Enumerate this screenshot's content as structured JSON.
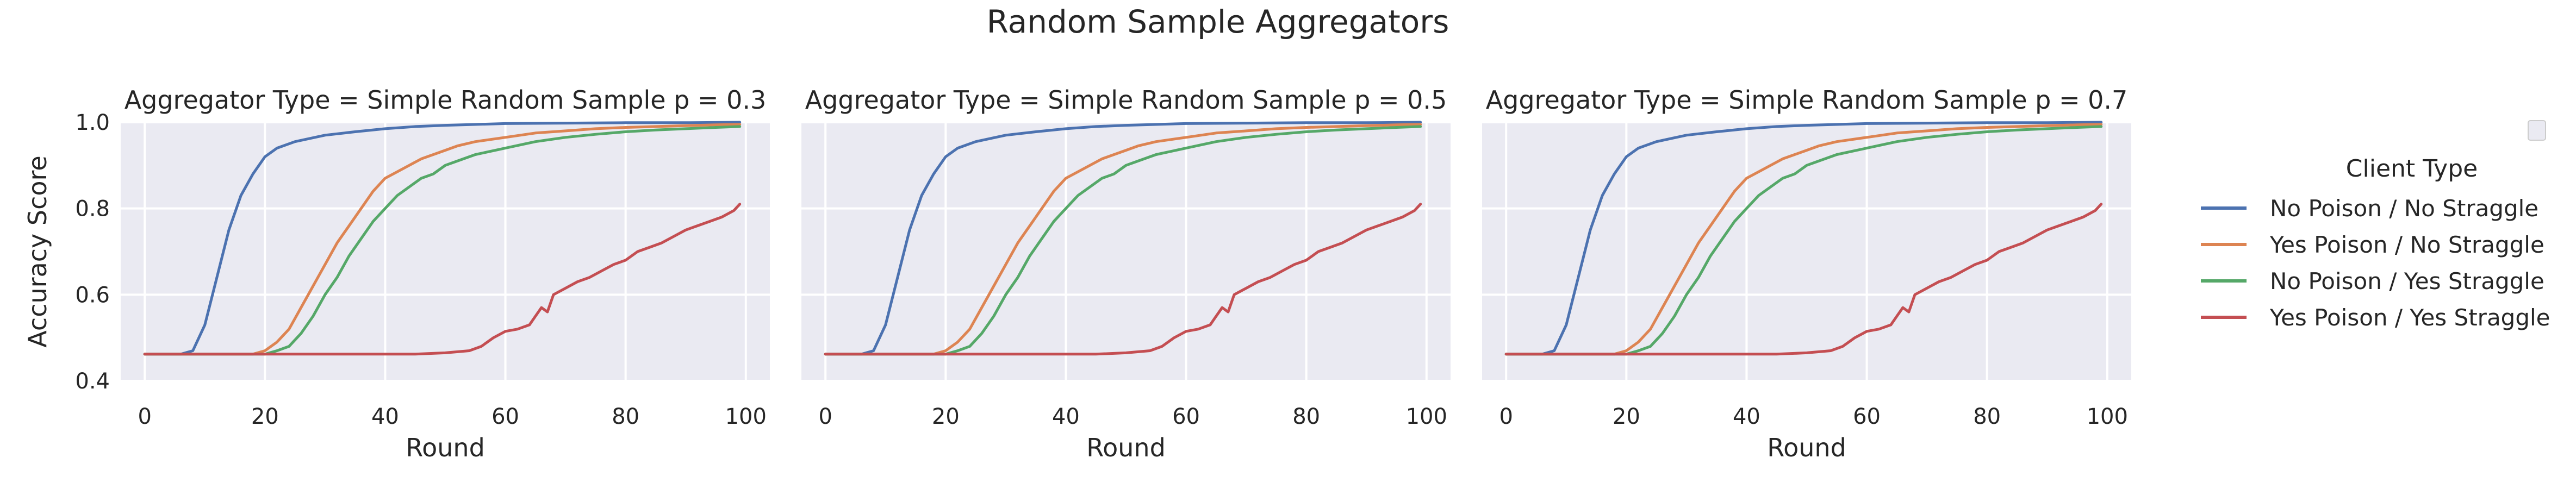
{
  "figure_title": "Random Sample Aggregators",
  "legend": {
    "title": "Client Type",
    "entries": [
      {
        "label": "No Poison / No Straggle",
        "color": "#4c72b0"
      },
      {
        "label": "Yes Poison / No Straggle",
        "color": "#dd8452"
      },
      {
        "label": "No Poison / Yes Straggle",
        "color": "#55a868"
      },
      {
        "label": "Yes Poison / Yes Straggle",
        "color": "#c44e52"
      }
    ]
  },
  "chart_data": [
    {
      "type": "line",
      "title": "Aggregator Type = Simple Random Sample p = 0.3",
      "xlabel": "Round",
      "ylabel": "Accuracy Score",
      "xlim": [
        -4,
        104
      ],
      "ylim": [
        0.4,
        1.0
      ],
      "xticks": [
        "0",
        "20",
        "40",
        "60",
        "80",
        "100"
      ],
      "yticks": [
        "0.4",
        "0.6",
        "0.8",
        "1.0"
      ],
      "grid": true,
      "series": [
        {
          "name": "No Poison / No Straggle",
          "color": "#4c72b0",
          "x": [
            0,
            6,
            8,
            10,
            12,
            14,
            16,
            18,
            20,
            22,
            25,
            30,
            35,
            40,
            45,
            50,
            55,
            60,
            70,
            80,
            90,
            99
          ],
          "y": [
            0.462,
            0.462,
            0.47,
            0.53,
            0.64,
            0.75,
            0.83,
            0.88,
            0.92,
            0.94,
            0.955,
            0.97,
            0.978,
            0.985,
            0.99,
            0.993,
            0.995,
            0.997,
            0.998,
            0.999,
            0.999,
            1.0
          ]
        },
        {
          "name": "Yes Poison / No Straggle",
          "color": "#dd8452",
          "x": [
            0,
            18,
            20,
            22,
            24,
            26,
            28,
            30,
            32,
            34,
            36,
            38,
            40,
            42,
            44,
            46,
            48,
            50,
            52,
            55,
            60,
            65,
            70,
            75,
            80,
            85,
            90,
            95,
            99
          ],
          "y": [
            0.462,
            0.462,
            0.47,
            0.49,
            0.52,
            0.57,
            0.62,
            0.67,
            0.72,
            0.76,
            0.8,
            0.84,
            0.87,
            0.885,
            0.9,
            0.915,
            0.925,
            0.935,
            0.945,
            0.955,
            0.965,
            0.975,
            0.98,
            0.985,
            0.988,
            0.99,
            0.992,
            0.994,
            0.995
          ]
        },
        {
          "name": "No Poison / Yes Straggle",
          "color": "#55a868",
          "x": [
            0,
            20,
            22,
            24,
            26,
            28,
            30,
            32,
            34,
            36,
            38,
            40,
            42,
            44,
            46,
            48,
            50,
            52,
            55,
            60,
            65,
            70,
            75,
            80,
            85,
            90,
            95,
            99
          ],
          "y": [
            0.462,
            0.462,
            0.47,
            0.48,
            0.51,
            0.55,
            0.6,
            0.64,
            0.69,
            0.73,
            0.77,
            0.8,
            0.83,
            0.85,
            0.87,
            0.88,
            0.9,
            0.91,
            0.925,
            0.94,
            0.955,
            0.965,
            0.972,
            0.978,
            0.982,
            0.985,
            0.988,
            0.99
          ]
        },
        {
          "name": "Yes Poison / Yes Straggle",
          "color": "#c44e52",
          "x": [
            0,
            45,
            50,
            54,
            56,
            58,
            60,
            62,
            64,
            65,
            66,
            67,
            68,
            70,
            72,
            74,
            76,
            78,
            80,
            82,
            84,
            86,
            88,
            90,
            92,
            94,
            96,
            98,
            99
          ],
          "y": [
            0.462,
            0.462,
            0.465,
            0.47,
            0.48,
            0.5,
            0.515,
            0.52,
            0.53,
            0.55,
            0.57,
            0.56,
            0.6,
            0.615,
            0.63,
            0.64,
            0.655,
            0.67,
            0.68,
            0.7,
            0.71,
            0.72,
            0.735,
            0.75,
            0.76,
            0.77,
            0.78,
            0.795,
            0.81
          ]
        }
      ]
    },
    {
      "type": "line",
      "title": "Aggregator Type = Simple Random Sample p = 0.5",
      "xlabel": "Round",
      "ylabel": "",
      "xlim": [
        -4,
        104
      ],
      "ylim": [
        0.4,
        1.0
      ],
      "xticks": [
        "0",
        "20",
        "40",
        "60",
        "80",
        "100"
      ],
      "yticks": [],
      "grid": true,
      "series": [
        {
          "name": "No Poison / No Straggle",
          "color": "#4c72b0",
          "x": [
            0,
            6,
            8,
            10,
            12,
            14,
            16,
            18,
            20,
            22,
            25,
            30,
            35,
            40,
            45,
            50,
            55,
            60,
            70,
            80,
            90,
            99
          ],
          "y": [
            0.462,
            0.462,
            0.47,
            0.53,
            0.64,
            0.75,
            0.83,
            0.88,
            0.92,
            0.94,
            0.955,
            0.97,
            0.978,
            0.985,
            0.99,
            0.993,
            0.995,
            0.997,
            0.998,
            0.999,
            0.999,
            1.0
          ]
        },
        {
          "name": "Yes Poison / No Straggle",
          "color": "#dd8452",
          "x": [
            0,
            18,
            20,
            22,
            24,
            26,
            28,
            30,
            32,
            34,
            36,
            38,
            40,
            42,
            44,
            46,
            48,
            50,
            52,
            55,
            60,
            65,
            70,
            75,
            80,
            85,
            90,
            95,
            99
          ],
          "y": [
            0.462,
            0.462,
            0.47,
            0.49,
            0.52,
            0.57,
            0.62,
            0.67,
            0.72,
            0.76,
            0.8,
            0.84,
            0.87,
            0.885,
            0.9,
            0.915,
            0.925,
            0.935,
            0.945,
            0.955,
            0.965,
            0.975,
            0.98,
            0.985,
            0.988,
            0.99,
            0.992,
            0.994,
            0.995
          ]
        },
        {
          "name": "No Poison / Yes Straggle",
          "color": "#55a868",
          "x": [
            0,
            20,
            22,
            24,
            26,
            28,
            30,
            32,
            34,
            36,
            38,
            40,
            42,
            44,
            46,
            48,
            50,
            52,
            55,
            60,
            65,
            70,
            75,
            80,
            85,
            90,
            95,
            99
          ],
          "y": [
            0.462,
            0.462,
            0.47,
            0.48,
            0.51,
            0.55,
            0.6,
            0.64,
            0.69,
            0.73,
            0.77,
            0.8,
            0.83,
            0.85,
            0.87,
            0.88,
            0.9,
            0.91,
            0.925,
            0.94,
            0.955,
            0.965,
            0.972,
            0.978,
            0.982,
            0.985,
            0.988,
            0.99
          ]
        },
        {
          "name": "Yes Poison / Yes Straggle",
          "color": "#c44e52",
          "x": [
            0,
            45,
            50,
            54,
            56,
            58,
            60,
            62,
            64,
            65,
            66,
            67,
            68,
            70,
            72,
            74,
            76,
            78,
            80,
            82,
            84,
            86,
            88,
            90,
            92,
            94,
            96,
            98,
            99
          ],
          "y": [
            0.462,
            0.462,
            0.465,
            0.47,
            0.48,
            0.5,
            0.515,
            0.52,
            0.53,
            0.55,
            0.57,
            0.56,
            0.6,
            0.615,
            0.63,
            0.64,
            0.655,
            0.67,
            0.68,
            0.7,
            0.71,
            0.72,
            0.735,
            0.75,
            0.76,
            0.77,
            0.78,
            0.795,
            0.81
          ]
        }
      ]
    },
    {
      "type": "line",
      "title": "Aggregator Type = Simple Random Sample p = 0.7",
      "xlabel": "Round",
      "ylabel": "",
      "xlim": [
        -4,
        104
      ],
      "ylim": [
        0.4,
        1.0
      ],
      "xticks": [
        "0",
        "20",
        "40",
        "60",
        "80",
        "100"
      ],
      "yticks": [],
      "grid": true,
      "series": [
        {
          "name": "No Poison / No Straggle",
          "color": "#4c72b0",
          "x": [
            0,
            6,
            8,
            10,
            12,
            14,
            16,
            18,
            20,
            22,
            25,
            30,
            35,
            40,
            45,
            50,
            55,
            60,
            70,
            80,
            90,
            99
          ],
          "y": [
            0.462,
            0.462,
            0.47,
            0.53,
            0.64,
            0.75,
            0.83,
            0.88,
            0.92,
            0.94,
            0.955,
            0.97,
            0.978,
            0.985,
            0.99,
            0.993,
            0.995,
            0.997,
            0.998,
            0.999,
            0.999,
            1.0
          ]
        },
        {
          "name": "Yes Poison / No Straggle",
          "color": "#dd8452",
          "x": [
            0,
            18,
            20,
            22,
            24,
            26,
            28,
            30,
            32,
            34,
            36,
            38,
            40,
            42,
            44,
            46,
            48,
            50,
            52,
            55,
            60,
            65,
            70,
            75,
            80,
            85,
            90,
            95,
            99
          ],
          "y": [
            0.462,
            0.462,
            0.47,
            0.49,
            0.52,
            0.57,
            0.62,
            0.67,
            0.72,
            0.76,
            0.8,
            0.84,
            0.87,
            0.885,
            0.9,
            0.915,
            0.925,
            0.935,
            0.945,
            0.955,
            0.965,
            0.975,
            0.98,
            0.985,
            0.988,
            0.99,
            0.992,
            0.994,
            0.995
          ]
        },
        {
          "name": "No Poison / Yes Straggle",
          "color": "#55a868",
          "x": [
            0,
            20,
            22,
            24,
            26,
            28,
            30,
            32,
            34,
            36,
            38,
            40,
            42,
            44,
            46,
            48,
            50,
            52,
            55,
            60,
            65,
            70,
            75,
            80,
            85,
            90,
            95,
            99
          ],
          "y": [
            0.462,
            0.462,
            0.47,
            0.48,
            0.51,
            0.55,
            0.6,
            0.64,
            0.69,
            0.73,
            0.77,
            0.8,
            0.83,
            0.85,
            0.87,
            0.88,
            0.9,
            0.91,
            0.925,
            0.94,
            0.955,
            0.965,
            0.972,
            0.978,
            0.982,
            0.985,
            0.988,
            0.99
          ]
        },
        {
          "name": "Yes Poison / Yes Straggle",
          "color": "#c44e52",
          "x": [
            0,
            45,
            50,
            54,
            56,
            58,
            60,
            62,
            64,
            65,
            66,
            67,
            68,
            70,
            72,
            74,
            76,
            78,
            80,
            82,
            84,
            86,
            88,
            90,
            92,
            94,
            96,
            98,
            99
          ],
          "y": [
            0.462,
            0.462,
            0.465,
            0.47,
            0.48,
            0.5,
            0.515,
            0.52,
            0.53,
            0.55,
            0.57,
            0.56,
            0.6,
            0.615,
            0.63,
            0.64,
            0.655,
            0.67,
            0.68,
            0.7,
            0.71,
            0.72,
            0.735,
            0.75,
            0.76,
            0.77,
            0.78,
            0.795,
            0.81
          ]
        }
      ]
    }
  ]
}
